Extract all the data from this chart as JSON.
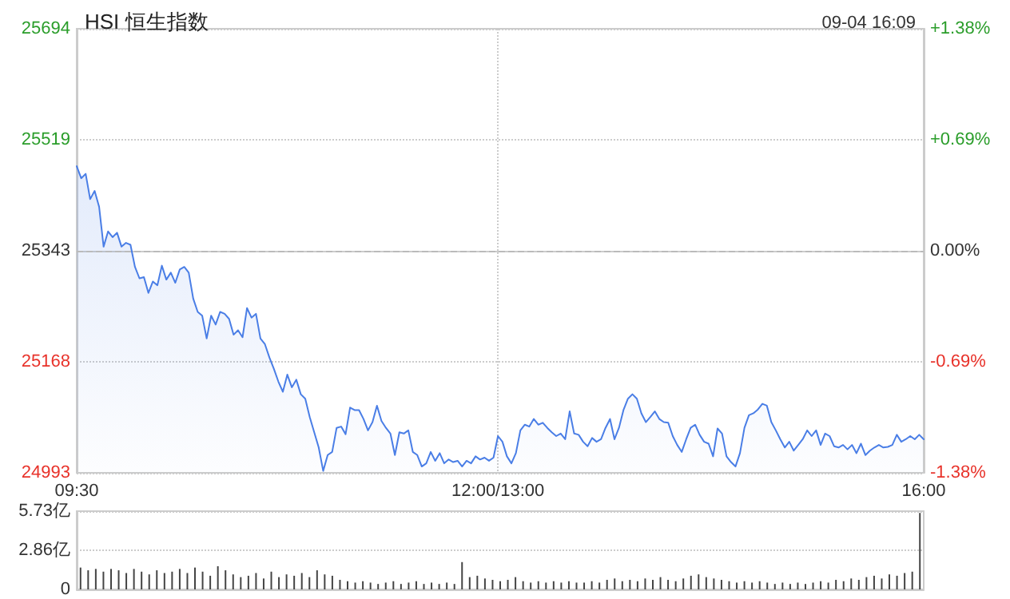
{
  "chart_data": [
    {
      "type": "area",
      "title": "HSI 恒生指数",
      "subtitle": "09-04 16:09",
      "categories": [
        "09:30",
        null,
        null,
        null,
        null,
        null,
        null,
        null,
        null,
        null,
        null,
        null,
        null,
        null,
        null,
        null,
        null,
        null,
        null,
        null,
        null,
        null,
        null,
        null,
        null,
        null,
        null,
        null,
        null,
        null,
        null,
        null,
        null,
        null,
        null,
        null,
        null,
        null,
        null,
        null,
        null,
        null,
        null,
        null,
        null,
        null,
        null,
        null,
        null,
        null,
        null,
        null,
        null,
        null,
        null,
        null,
        null,
        null,
        null,
        null,
        null,
        null,
        null,
        null,
        null,
        null,
        null,
        null,
        null,
        null,
        null,
        null,
        null,
        null,
        null,
        null,
        null,
        null,
        null,
        null,
        null,
        null,
        null,
        null,
        null,
        null,
        null,
        null,
        null,
        null,
        null,
        null,
        null,
        null,
        "12:00/13:00",
        null,
        null,
        null,
        null,
        null,
        null,
        null,
        null,
        null,
        null,
        null,
        null,
        null,
        null,
        null,
        null,
        null,
        null,
        null,
        null,
        null,
        null,
        null,
        null,
        null,
        null,
        null,
        null,
        null,
        null,
        null,
        null,
        null,
        null,
        null,
        null,
        null,
        null,
        null,
        null,
        null,
        null,
        null,
        null,
        null,
        null,
        null,
        null,
        null,
        null,
        null,
        null,
        null,
        null,
        null,
        null,
        null,
        null,
        null,
        null,
        null,
        null,
        null,
        null,
        null,
        null,
        null,
        null,
        null,
        null,
        null,
        null,
        null,
        null,
        null,
        null,
        null,
        null,
        null,
        null,
        null,
        null,
        null,
        null,
        null,
        null,
        null,
        null,
        null,
        null,
        null,
        null,
        null,
        null,
        "16:00"
      ],
      "series": [
        {
          "color": "#4a7ee6",
          "values": [
            25477,
            25458,
            25465,
            25425,
            25438,
            25413,
            25350,
            25374,
            25365,
            25372,
            25350,
            25356,
            25353,
            25318,
            25300,
            25302,
            25277,
            25295,
            25289,
            25320,
            25298,
            25309,
            25293,
            25314,
            25318,
            25309,
            25268,
            25247,
            25241,
            25205,
            25241,
            25227,
            25247,
            25244,
            25236,
            25211,
            25218,
            25207,
            25253,
            25238,
            25244,
            25205,
            25196,
            25175,
            25157,
            25137,
            25121,
            25148,
            25128,
            25140,
            25117,
            25110,
            25081,
            25057,
            25033,
            24996,
            25021,
            25026,
            25064,
            25066,
            25054,
            25096,
            25092,
            25092,
            25078,
            25060,
            25073,
            25099,
            25075,
            25064,
            25055,
            25021,
            25057,
            25055,
            25060,
            25026,
            25021,
            25003,
            25008,
            25026,
            25012,
            25024,
            25008,
            25014,
            25010,
            25012,
            25003,
            25012,
            25008,
            25019,
            25014,
            25017,
            25012,
            25017,
            25051,
            25042,
            25019,
            25008,
            25024,
            25060,
            25069,
            25066,
            25078,
            25069,
            25072,
            25064,
            25057,
            25051,
            25055,
            25046,
            25090,
            25055,
            25053,
            25042,
            25035,
            25048,
            25042,
            25046,
            25064,
            25078,
            25046,
            25064,
            25092,
            25110,
            25117,
            25110,
            25087,
            25073,
            25081,
            25090,
            25078,
            25073,
            25072,
            25051,
            25037,
            25026,
            25046,
            25064,
            25069,
            25053,
            25042,
            25039,
            25019,
            25063,
            25055,
            25019,
            25010,
            25003,
            25024,
            25064,
            25084,
            25087,
            25093,
            25102,
            25099,
            25073,
            25060,
            25046,
            25033,
            25042,
            25028,
            25037,
            25046,
            25060,
            25051,
            25060,
            25037,
            25055,
            25051,
            25035,
            25033,
            25037,
            25030,
            25037,
            25024,
            25039,
            25021,
            25028,
            25033,
            25037,
            25033,
            25034,
            25037,
            25053,
            25042,
            25046,
            25051,
            25046,
            25053,
            25046
          ]
        }
      ],
      "ylim": [
        24993,
        25694
      ],
      "yticks": [
        24993,
        25168,
        25343,
        25519,
        25694
      ],
      "y2lim": [
        -1.38,
        1.38
      ],
      "y2ticks": [
        {
          "value": -1.38,
          "label": "-1.38%"
        },
        {
          "value": -0.69,
          "label": "-0.69%"
        },
        {
          "value": 0,
          "label": "0.00%"
        },
        {
          "value": 0.69,
          "label": "+0.69%"
        },
        {
          "value": 1.38,
          "label": "+1.38%"
        }
      ],
      "ref_lines": [
        {
          "axis": "y",
          "value": 25343,
          "color": "#bbbbbb",
          "line_style": "dashed"
        }
      ],
      "grid": true,
      "marker": "none",
      "line_style": "solid"
    },
    {
      "type": "bar",
      "color": "#444444",
      "categories": [
        null,
        null,
        null,
        null,
        null,
        null,
        null,
        null,
        null,
        null,
        null,
        null,
        null,
        null,
        null,
        null,
        null,
        null,
        null,
        null,
        null,
        null,
        null,
        null,
        null,
        null,
        null,
        null,
        null,
        null,
        null,
        null,
        null,
        null,
        null,
        null,
        null,
        null,
        null,
        null,
        null,
        null,
        null,
        null,
        null,
        null,
        null,
        null,
        null,
        null,
        null,
        null,
        null,
        null,
        null,
        null,
        null,
        null,
        null,
        null,
        null,
        null,
        null,
        null,
        null,
        null,
        null,
        null,
        null,
        null,
        null,
        null,
        null,
        null,
        null,
        null,
        null,
        null,
        null,
        null,
        null,
        null,
        null,
        null,
        null,
        null,
        null,
        null,
        null,
        null,
        null,
        null,
        null,
        null,
        null,
        null,
        null,
        null,
        null,
        null,
        null,
        null,
        null,
        null,
        null,
        null,
        null,
        null,
        null,
        null,
        null
      ],
      "values": [
        1.6,
        1.4,
        1.5,
        1.3,
        1.5,
        1.4,
        1.2,
        1.5,
        1.3,
        1.1,
        1.4,
        1.2,
        1.3,
        1.5,
        1.2,
        1.6,
        1.3,
        1.0,
        1.7,
        1.4,
        1.1,
        0.9,
        1.0,
        1.2,
        0.8,
        1.3,
        0.9,
        1.1,
        1.0,
        1.2,
        0.9,
        1.4,
        1.1,
        1.0,
        0.7,
        0.6,
        0.5,
        0.6,
        0.5,
        0.4,
        0.5,
        0.6,
        0.4,
        0.5,
        0.6,
        0.4,
        0.5,
        0.4,
        0.5,
        0.4,
        2.0,
        0.9,
        1.0,
        0.8,
        0.7,
        0.6,
        0.7,
        0.9,
        0.6,
        0.5,
        0.6,
        0.5,
        0.6,
        0.5,
        0.6,
        0.5,
        0.5,
        0.6,
        0.5,
        0.7,
        0.8,
        0.6,
        0.7,
        0.6,
        0.8,
        0.7,
        0.9,
        0.7,
        0.6,
        0.8,
        1.0,
        1.1,
        0.9,
        0.8,
        0.7,
        0.6,
        0.5,
        0.6,
        0.5,
        0.6,
        0.5,
        0.4,
        0.5,
        0.4,
        0.5,
        0.4,
        0.5,
        0.6,
        0.5,
        0.7,
        0.6,
        0.8,
        0.7,
        0.9,
        1.0,
        0.8,
        1.1,
        1.0,
        1.2,
        1.3,
        5.6
      ],
      "ylim": [
        0,
        5.73
      ],
      "yticks": [
        {
          "value": 0,
          "label": "0"
        },
        {
          "value": 2.86,
          "label": "2.86亿"
        },
        {
          "value": 5.73,
          "label": "5.73亿"
        }
      ],
      "grid": "y",
      "tick_labels": "y"
    }
  ]
}
